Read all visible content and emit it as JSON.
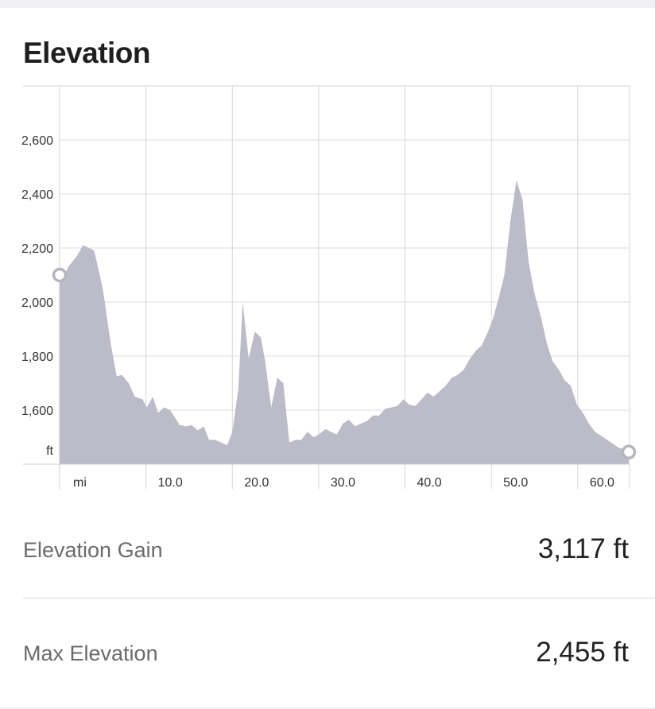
{
  "section": {
    "title": "Elevation"
  },
  "chart_data": {
    "type": "area",
    "y_unit_label": "ft",
    "x_unit_label": "mi",
    "ylim": [
      1400,
      2800
    ],
    "xlim": [
      0,
      66
    ],
    "y_ticks": [
      1600,
      1800,
      2000,
      2200,
      2400,
      2600
    ],
    "y_tick_labels": [
      "1,600",
      "1,800",
      "2,000",
      "2,200",
      "2,400",
      "2,600"
    ],
    "x_ticks": [
      10,
      20,
      30,
      40,
      50,
      60
    ],
    "x_tick_labels": [
      "10.0",
      "20.0",
      "30.0",
      "40.0",
      "50.0",
      "60.0"
    ],
    "grid": true,
    "fill_color": "#bcbbc8",
    "marker_color": "#b5b5c0",
    "x": [
      0,
      0.5,
      1,
      2,
      2.7,
      3.4,
      4,
      5,
      5.9,
      6.6,
      7.2,
      8,
      8.7,
      9.6,
      10.1,
      10.8,
      11.4,
      12.1,
      12.8,
      13.9,
      14.7,
      15.3,
      16,
      16.7,
      17.3,
      18,
      18.7,
      19.4,
      20,
      20.7,
      21.2,
      21.9,
      22.6,
      23.3,
      23.8,
      24.5,
      25.2,
      25.9,
      26.6,
      27.3,
      28,
      28.7,
      29.4,
      30,
      30.8,
      31.4,
      32.1,
      32.8,
      33.5,
      34.2,
      34.9,
      35.6,
      36.3,
      37,
      37.7,
      38.4,
      39.1,
      39.8,
      40.5,
      41.2,
      41.9,
      42.6,
      43.3,
      44,
      44.7,
      45.4,
      46.1,
      46.8,
      47.5,
      48.2,
      48.9,
      49.6,
      50.2,
      50.8,
      51.5,
      52.2,
      52.9,
      53.6,
      54.3,
      55,
      55.7,
      56.4,
      57.1,
      57.8,
      58.5,
      59.2,
      59.9,
      60.6,
      61.3,
      62,
      62.7,
      63.4,
      64.1,
      64.8,
      65.4,
      65.9
    ],
    "y": [
      2100,
      2095,
      2130,
      2170,
      2210,
      2200,
      2190,
      2050,
      1850,
      1725,
      1730,
      1700,
      1650,
      1640,
      1610,
      1650,
      1590,
      1610,
      1600,
      1545,
      1540,
      1545,
      1525,
      1540,
      1490,
      1490,
      1480,
      1470,
      1520,
      1680,
      2000,
      1790,
      1890,
      1870,
      1780,
      1610,
      1720,
      1700,
      1480,
      1490,
      1490,
      1520,
      1500,
      1510,
      1530,
      1520,
      1510,
      1550,
      1565,
      1540,
      1550,
      1560,
      1580,
      1580,
      1605,
      1610,
      1615,
      1640,
      1620,
      1615,
      1640,
      1665,
      1650,
      1670,
      1690,
      1720,
      1730,
      1750,
      1790,
      1820,
      1840,
      1890,
      1940,
      2010,
      2100,
      2300,
      2450,
      2380,
      2150,
      2030,
      1950,
      1850,
      1780,
      1750,
      1710,
      1690,
      1620,
      1590,
      1550,
      1520,
      1505,
      1490,
      1475,
      1460,
      1455,
      1445
    ]
  },
  "stats": [
    {
      "label": "Elevation Gain",
      "value": "3,117 ft"
    },
    {
      "label": "Max Elevation",
      "value": "2,455 ft"
    }
  ]
}
